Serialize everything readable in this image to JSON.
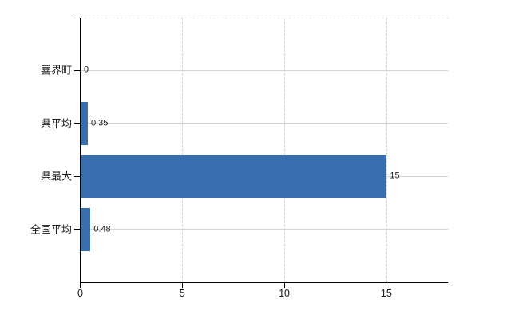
{
  "chart_data": {
    "type": "bar",
    "orientation": "horizontal",
    "title": "",
    "xlabel": "",
    "ylabel": "",
    "categories": [
      "喜界町",
      "県平均",
      "県最大",
      "全国平均"
    ],
    "values": [
      0,
      0.35,
      15,
      0.48
    ],
    "value_labels": [
      "0",
      "0.35",
      "15",
      "0.48"
    ],
    "xlim": [
      0,
      18
    ],
    "xticks": [
      0,
      5,
      10,
      15
    ],
    "xtick_labels": [
      "0",
      "5",
      "10",
      "15"
    ],
    "grid": true,
    "legend": false,
    "colors": {
      "bar": "#3a6dae",
      "gridline": "#d0d7d0",
      "axis": "#000000",
      "text": "#1a1a1a",
      "background": "#ffffff"
    }
  }
}
